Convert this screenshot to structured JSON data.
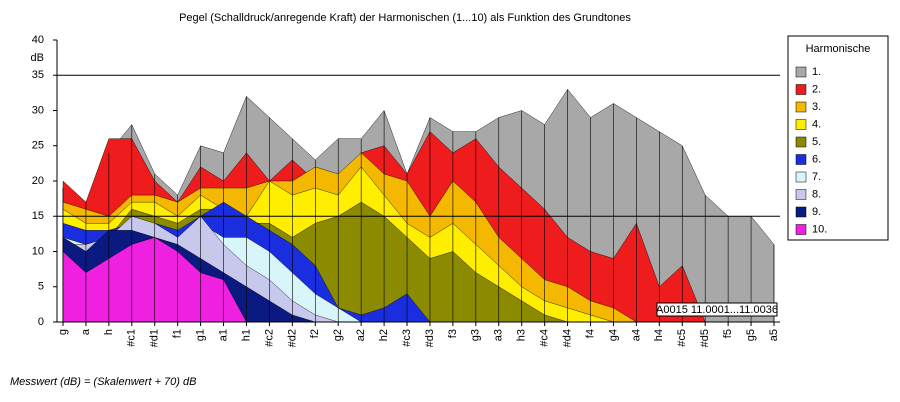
{
  "chart_data": {
    "type": "area",
    "title": "Pegel (Schalldruck/anregende Kraft) der Harmonischen (1...10) als Funktion des Grundtones",
    "y_unit": "dB",
    "footnote": "Messwert (dB) = (Skalenwert + 70) dB",
    "annotation": "A0015  11.0001...11.0036",
    "legend_title": "Harmonische",
    "legend": "right",
    "ylim": [
      0,
      40
    ],
    "yticks": [
      0,
      5,
      10,
      15,
      20,
      25,
      30,
      35,
      40
    ],
    "hlines": [
      15,
      35
    ],
    "categories": [
      "g",
      "a",
      "h",
      "#c1",
      "#d1",
      "f1",
      "g1",
      "a1",
      "h1",
      "#c2",
      "#d2",
      "f2",
      "g2",
      "a2",
      "h2",
      "#c3",
      "#d3",
      "f3",
      "g3",
      "a3",
      "h3",
      "#c4",
      "#d4",
      "f4",
      "g4",
      "a4",
      "h4",
      "#c5",
      "#d5",
      "f5",
      "g5",
      "a5"
    ],
    "series": [
      {
        "name": "1.",
        "color": "#a8a8a8",
        "values": [
          19,
          17,
          24,
          28,
          21,
          18,
          25,
          24,
          32,
          29,
          26,
          23,
          26,
          26,
          30,
          21,
          29,
          27,
          27,
          29,
          30,
          28,
          33,
          29,
          31,
          29,
          27,
          25,
          18,
          15,
          15,
          11
        ]
      },
      {
        "name": "2.",
        "color": "#ee1c1c",
        "values": [
          20,
          17,
          26,
          26,
          20,
          17,
          22,
          20,
          24,
          20,
          23,
          20,
          20,
          24,
          25,
          21,
          27,
          24,
          26,
          22,
          19,
          16,
          12,
          10,
          9,
          14,
          5,
          8,
          0,
          0,
          0,
          0
        ]
      },
      {
        "name": "3.",
        "color": "#f5b800",
        "values": [
          17,
          16,
          15,
          18,
          18,
          17,
          19,
          19,
          19,
          20,
          20,
          22,
          21,
          24,
          21,
          20,
          15,
          20,
          17,
          12,
          9,
          6,
          5,
          3,
          2,
          0,
          0,
          0,
          0,
          0,
          0,
          0
        ]
      },
      {
        "name": "4.",
        "color": "#ffee00",
        "values": [
          16,
          14,
          14,
          17,
          17,
          15,
          18,
          16,
          15,
          20,
          18,
          19,
          18,
          22,
          18,
          14,
          12,
          14,
          11,
          8,
          5,
          3,
          2,
          1,
          0,
          0,
          0,
          0,
          0,
          0,
          0,
          0
        ]
      },
      {
        "name": "5.",
        "color": "#8c8a00",
        "values": [
          12,
          11,
          12,
          16,
          15,
          14,
          16,
          16,
          14,
          14,
          12,
          14,
          15,
          17,
          15,
          12,
          9,
          10,
          7,
          5,
          3,
          1,
          0,
          0,
          0,
          0,
          0,
          0,
          0,
          0,
          0,
          0
        ]
      },
      {
        "name": "6.",
        "color": "#1a2ee0",
        "values": [
          14,
          13,
          13,
          14,
          14,
          13,
          15,
          17,
          15,
          13,
          11,
          8,
          2,
          1,
          2,
          4,
          0,
          0,
          0,
          0,
          0,
          0,
          0,
          0,
          0,
          0,
          0,
          0,
          0,
          0,
          0,
          0
        ]
      },
      {
        "name": "7.",
        "color": "#d8f6fa",
        "values": [
          12,
          11,
          12,
          13,
          13,
          12,
          14,
          12,
          12,
          10,
          7,
          4,
          2,
          0,
          0,
          0,
          0,
          0,
          0,
          0,
          0,
          0,
          0,
          0,
          0,
          0,
          0,
          0,
          0,
          0,
          0,
          0
        ]
      },
      {
        "name": "8.",
        "color": "#c8c8ec",
        "values": [
          11,
          11,
          12,
          15,
          14,
          12,
          15,
          11,
          8,
          6,
          3,
          1,
          0,
          0,
          0,
          0,
          0,
          0,
          0,
          0,
          0,
          0,
          0,
          0,
          0,
          0,
          0,
          0,
          0,
          0,
          0,
          0
        ]
      },
      {
        "name": "9.",
        "color": "#0a1a80",
        "values": [
          12,
          10,
          13,
          13,
          12,
          11,
          9,
          7,
          5,
          3,
          1,
          0,
          0,
          0,
          0,
          0,
          0,
          0,
          0,
          0,
          0,
          0,
          0,
          0,
          0,
          0,
          0,
          0,
          0,
          0,
          0,
          0
        ]
      },
      {
        "name": "10.",
        "color": "#f020e0",
        "values": [
          10,
          7,
          9,
          11,
          12,
          10,
          7,
          6,
          0,
          0,
          0,
          0,
          0,
          0,
          0,
          0,
          0,
          0,
          0,
          0,
          0,
          0,
          0,
          0,
          0,
          0,
          0,
          0,
          0,
          0,
          0,
          0
        ]
      }
    ]
  }
}
